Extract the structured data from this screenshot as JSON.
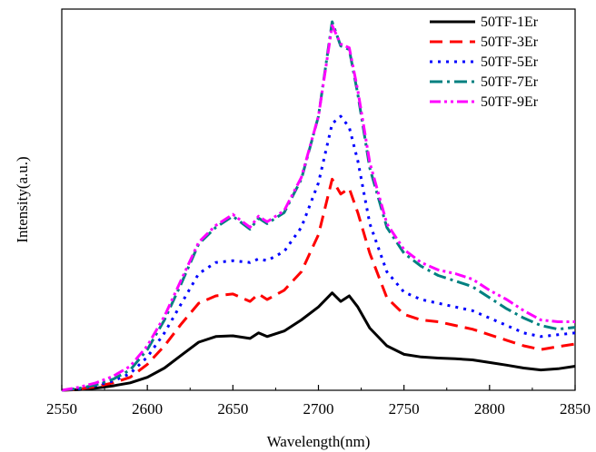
{
  "chart_data": {
    "type": "line",
    "title": "",
    "xlabel": "Wavelength(nm)",
    "ylabel": "Intensity(a.u.)",
    "xlim": [
      2550,
      2850
    ],
    "ylim": [
      0,
      1.0
    ],
    "x_ticks": [
      "2550",
      "2600",
      "2650",
      "2700",
      "2750",
      "2800",
      "2850"
    ],
    "y_ticks_shown": false,
    "grid": false,
    "legend_position": "top-right",
    "series": [
      {
        "name": "50TF-1Er",
        "color": "#000000",
        "dash": "solid",
        "x": [
          2550,
          2560,
          2570,
          2580,
          2590,
          2600,
          2610,
          2620,
          2630,
          2640,
          2650,
          2660,
          2665,
          2670,
          2680,
          2690,
          2700,
          2708,
          2713,
          2718,
          2723,
          2730,
          2740,
          2750,
          2760,
          2770,
          2780,
          2790,
          2800,
          2810,
          2820,
          2830,
          2840,
          2850
        ],
        "values": [
          0.0,
          0.002,
          0.006,
          0.012,
          0.02,
          0.035,
          0.06,
          0.095,
          0.13,
          0.145,
          0.147,
          0.14,
          0.155,
          0.145,
          0.16,
          0.19,
          0.225,
          0.263,
          0.24,
          0.255,
          0.225,
          0.168,
          0.12,
          0.097,
          0.09,
          0.087,
          0.085,
          0.082,
          0.075,
          0.068,
          0.06,
          0.055,
          0.058,
          0.065
        ]
      },
      {
        "name": "50TF-3Er",
        "color": "#ff0000",
        "dash": "long-dash",
        "x": [
          2550,
          2560,
          2570,
          2580,
          2590,
          2600,
          2610,
          2620,
          2630,
          2640,
          2650,
          2660,
          2665,
          2670,
          2680,
          2690,
          2700,
          2708,
          2713,
          2718,
          2723,
          2730,
          2740,
          2750,
          2760,
          2770,
          2780,
          2790,
          2800,
          2810,
          2820,
          2830,
          2840,
          2850
        ],
        "values": [
          0.0,
          0.003,
          0.01,
          0.02,
          0.035,
          0.07,
          0.12,
          0.18,
          0.235,
          0.255,
          0.26,
          0.24,
          0.26,
          0.245,
          0.27,
          0.32,
          0.42,
          0.57,
          0.53,
          0.545,
          0.48,
          0.37,
          0.25,
          0.205,
          0.19,
          0.185,
          0.175,
          0.165,
          0.15,
          0.135,
          0.12,
          0.11,
          0.118,
          0.125
        ]
      },
      {
        "name": "50TF-5Er",
        "color": "#0000ff",
        "dash": "dotted",
        "x": [
          2550,
          2560,
          2570,
          2580,
          2590,
          2600,
          2610,
          2620,
          2630,
          2640,
          2650,
          2660,
          2665,
          2670,
          2680,
          2690,
          2700,
          2708,
          2713,
          2718,
          2723,
          2730,
          2740,
          2750,
          2760,
          2770,
          2780,
          2790,
          2800,
          2810,
          2820,
          2830,
          2840,
          2850
        ],
        "values": [
          0.0,
          0.004,
          0.013,
          0.025,
          0.045,
          0.09,
          0.155,
          0.235,
          0.315,
          0.345,
          0.35,
          0.345,
          0.355,
          0.35,
          0.375,
          0.44,
          0.56,
          0.72,
          0.74,
          0.71,
          0.62,
          0.45,
          0.32,
          0.265,
          0.245,
          0.235,
          0.225,
          0.215,
          0.195,
          0.175,
          0.155,
          0.145,
          0.15,
          0.155
        ]
      },
      {
        "name": "50TF-7Er",
        "color": "#008080",
        "dash": "dash-dot",
        "x": [
          2550,
          2560,
          2570,
          2580,
          2590,
          2600,
          2610,
          2620,
          2630,
          2640,
          2650,
          2660,
          2665,
          2670,
          2680,
          2690,
          2700,
          2708,
          2713,
          2718,
          2723,
          2730,
          2740,
          2750,
          2760,
          2770,
          2780,
          2790,
          2800,
          2810,
          2820,
          2830,
          2840,
          2850
        ],
        "values": [
          0.0,
          0.005,
          0.015,
          0.03,
          0.055,
          0.11,
          0.19,
          0.29,
          0.395,
          0.44,
          0.47,
          0.435,
          0.465,
          0.45,
          0.48,
          0.57,
          0.74,
          0.995,
          0.93,
          0.92,
          0.8,
          0.6,
          0.44,
          0.37,
          0.335,
          0.31,
          0.295,
          0.28,
          0.25,
          0.22,
          0.195,
          0.175,
          0.165,
          0.17
        ]
      },
      {
        "name": "50TF-9Er",
        "color": "#ff00ff",
        "dash": "dash-dot-dot",
        "x": [
          2550,
          2560,
          2570,
          2580,
          2590,
          2600,
          2610,
          2620,
          2630,
          2640,
          2650,
          2660,
          2665,
          2670,
          2680,
          2690,
          2700,
          2708,
          2713,
          2718,
          2723,
          2730,
          2740,
          2750,
          2760,
          2770,
          2780,
          2790,
          2800,
          2810,
          2820,
          2830,
          2840,
          2850
        ],
        "values": [
          0.0,
          0.008,
          0.02,
          0.038,
          0.065,
          0.12,
          0.2,
          0.3,
          0.4,
          0.445,
          0.475,
          0.44,
          0.47,
          0.455,
          0.485,
          0.575,
          0.74,
          0.985,
          0.935,
          0.925,
          0.81,
          0.615,
          0.45,
          0.38,
          0.345,
          0.325,
          0.315,
          0.3,
          0.27,
          0.245,
          0.215,
          0.19,
          0.185,
          0.185
        ]
      }
    ]
  }
}
